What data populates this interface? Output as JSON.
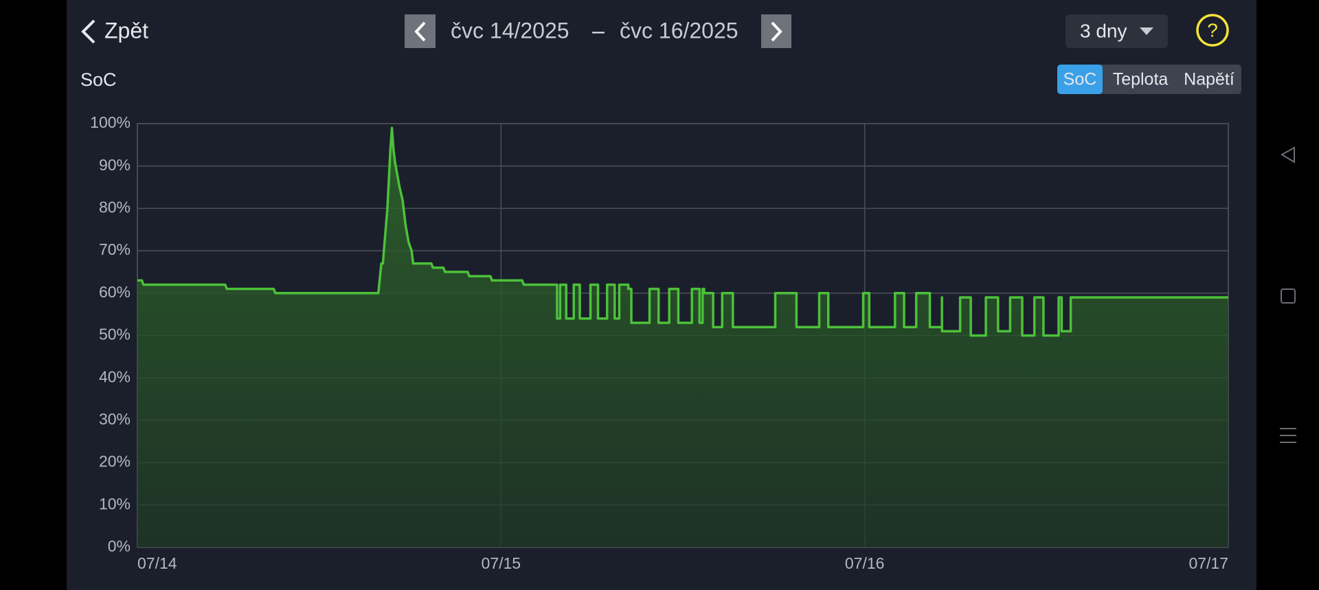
{
  "header": {
    "back": "Zpět",
    "range_start": "čvc 14/2025",
    "range_separator": "–",
    "range_end": "čvc 16/2025",
    "period": "3 dny",
    "help": "?"
  },
  "tabs": [
    "SoC",
    "Teplota",
    "Napětí"
  ],
  "chart_data": {
    "type": "area",
    "title": "SoC",
    "series": [
      {
        "name": "SoC",
        "color": "#4cc13a",
        "x": [
          0,
          0.3,
          0.4,
          5.8,
          5.9,
          9.0,
          9.1,
          15.9,
          16.1,
          16.2,
          16.5,
          16.7,
          16.8,
          16.9,
          17.0,
          17.3,
          17.5,
          17.7,
          17.9,
          18.1,
          18.2,
          19.4,
          19.5,
          20.2,
          20.3,
          21.8,
          21.9,
          23.3,
          23.4,
          25.4,
          25.5,
          27.7,
          27.7,
          27.9,
          27.9,
          28.3,
          28.3,
          28.8,
          28.8,
          29.2,
          29.2,
          29.9,
          29.9,
          30.4,
          30.4,
          31.0,
          31.0,
          31.5,
          31.5,
          31.8,
          31.8,
          32.4,
          32.4,
          32.6,
          32.6,
          33.8,
          33.8,
          34.4,
          34.4,
          35.1,
          35.1,
          35.7,
          35.7,
          36.6,
          36.6,
          37.1,
          37.1,
          37.3,
          37.3,
          37.4,
          37.4,
          38.0,
          38.0,
          38.6,
          38.6,
          39.3,
          39.3,
          42.1,
          42.1,
          43.5,
          43.5,
          45.0,
          45.0,
          45.6,
          45.6,
          47.9,
          47.9,
          48.3,
          48.3,
          50.0,
          50.0,
          50.6,
          50.6,
          51.4,
          51.4,
          52.3,
          52.3,
          53.1,
          53.1,
          53.1,
          54.3,
          54.3,
          55.0,
          55.0,
          56.0,
          56.0,
          56.8,
          56.8,
          57.6,
          57.6,
          58.4,
          58.4,
          59.2,
          59.2,
          59.8,
          59.8,
          60.8,
          60.8,
          61.0,
          61.0,
          61.6,
          61.6,
          72
        ],
        "values": [
          63,
          63,
          62,
          62,
          61,
          61,
          60,
          60,
          67,
          67,
          80,
          94,
          99,
          94,
          91,
          85,
          82,
          76,
          72,
          70,
          67,
          67,
          66,
          66,
          65,
          65,
          64,
          64,
          63,
          63,
          62,
          62,
          54,
          54,
          62,
          62,
          54,
          54,
          62,
          62,
          54,
          54,
          62,
          62,
          54,
          54,
          62,
          62,
          54,
          54,
          62,
          62,
          61,
          61,
          53,
          53,
          61,
          61,
          53,
          53,
          61,
          61,
          53,
          53,
          61,
          61,
          53,
          53,
          61,
          61,
          60,
          60,
          52,
          52,
          60,
          60,
          52,
          52,
          60,
          60,
          52,
          52,
          60,
          60,
          52,
          52,
          60,
          60,
          52,
          52,
          60,
          60,
          52,
          52,
          60,
          60,
          52,
          52,
          59,
          51,
          51,
          59,
          59,
          50,
          50,
          59,
          59,
          51,
          51,
          59,
          59,
          50,
          50,
          59,
          59,
          50,
          50,
          59,
          59,
          51,
          51,
          59,
          59
        ]
      }
    ],
    "xlim": [
      0,
      72
    ],
    "xticks": [
      {
        "value": 0,
        "label": "07/14"
      },
      {
        "value": 24,
        "label": "07/15"
      },
      {
        "value": 48,
        "label": "07/16"
      },
      {
        "value": 72,
        "label": "07/17"
      }
    ],
    "ylim": [
      0,
      100
    ],
    "yticks": [
      {
        "value": 0,
        "label": "0%"
      },
      {
        "value": 10,
        "label": "10%"
      },
      {
        "value": 20,
        "label": "20%"
      },
      {
        "value": 30,
        "label": "30%"
      },
      {
        "value": 40,
        "label": "40%"
      },
      {
        "value": 50,
        "label": "50%"
      },
      {
        "value": 60,
        "label": "60%"
      },
      {
        "value": 70,
        "label": "70%"
      },
      {
        "value": 80,
        "label": "80%"
      },
      {
        "value": 90,
        "label": "90%"
      },
      {
        "value": 100,
        "label": "100%"
      }
    ],
    "grid": true
  }
}
